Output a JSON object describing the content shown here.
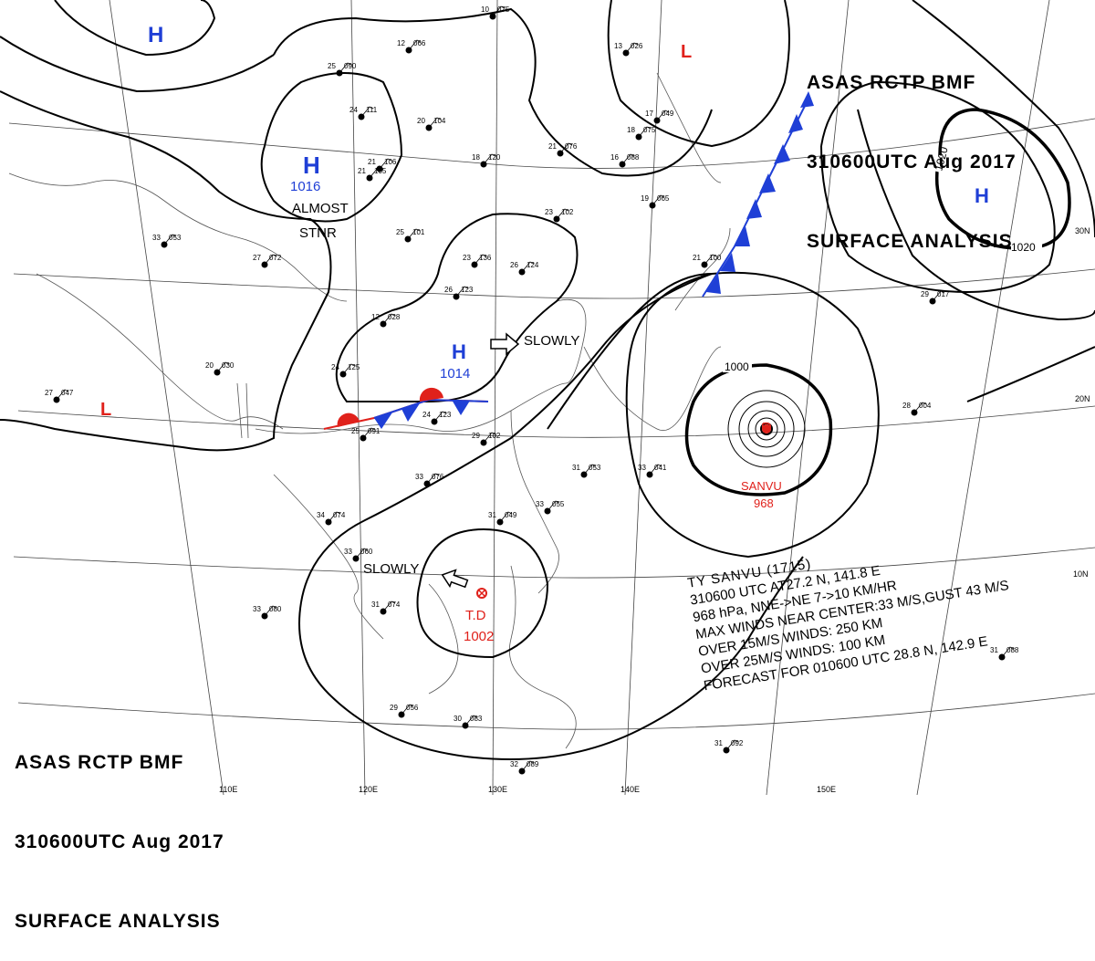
{
  "header_top": {
    "line1": "ASAS RCTP BMF",
    "line2": "310600UTC Aug 2017",
    "line3": "SURFACE ANALYSIS"
  },
  "header_bottom": {
    "line1": "ASAS RCTP BMF",
    "line2": "310600UTC Aug 2017",
    "line3": "SURFACE ANALYSIS"
  },
  "pressure_centers": [
    {
      "type": "H",
      "color": "#1f3fd6",
      "value": "",
      "note": ""
    },
    {
      "type": "H",
      "color": "#1f3fd6",
      "value": "1016",
      "note": "ALMOST STNR"
    },
    {
      "type": "H",
      "color": "#1f3fd6",
      "value": "1014",
      "note": "SLOWLY"
    },
    {
      "type": "H",
      "color": "#1f3fd6",
      "value": "",
      "note": ""
    },
    {
      "type": "L",
      "color": "#e0211b",
      "value": "",
      "note": ""
    },
    {
      "type": "L",
      "color": "#e0211b",
      "value": "",
      "note": ""
    }
  ],
  "almost_stnr": {
    "line1": "ALMOST",
    "line2": "STNR"
  },
  "motion_labels": {
    "slowly_1": "SLOWLY",
    "slowly_2": "SLOWLY"
  },
  "typhoon": {
    "name": "SANVU",
    "pressure": "968",
    "color": "#e0211b"
  },
  "depression": {
    "name": "T.D",
    "pressure": "1002",
    "color": "#e0211b"
  },
  "isobar_labels": {
    "a": "1000",
    "b": "1020",
    "c": "1020"
  },
  "latitude_labels": {
    "lat20": "20N",
    "lat10": "10N",
    "lat30": "30N"
  },
  "longitude_labels": {
    "lon110": "110E",
    "lon120": "120E",
    "lon130": "130E",
    "lon140": "140E",
    "lon150": "150E"
  },
  "advisory": {
    "line1": "TY SANVU (1715)",
    "line2": "310600 UTC AT27.2 N, 141.8 E",
    "line3": "968 hPa, NNE->NE 7->10 KM/HR",
    "line4": "MAX WINDS NEAR CENTER:33 M/S,GUST 43 M/S",
    "line5": "OVER 15M/S WINDS: 250 KM",
    "line6": "OVER 25M/S WINDS: 100 KM",
    "line7": "FORECAST FOR 010600 UTC 28.8 N, 142.9 E"
  },
  "front_colors": {
    "cold": "#1f3fd6",
    "warm": "#e0211b"
  },
  "stations": [
    {
      "t": "25",
      "p": "090"
    },
    {
      "t": "24",
      "p": "111"
    },
    {
      "t": "20",
      "p": "104"
    },
    {
      "t": "18",
      "p": "120"
    },
    {
      "t": "21",
      "p": "105"
    },
    {
      "t": "25",
      "p": "101"
    },
    {
      "t": "23",
      "p": "136"
    },
    {
      "t": "26",
      "p": "124"
    },
    {
      "t": "23",
      "p": "102"
    },
    {
      "t": "27",
      "p": "072"
    },
    {
      "t": "33",
      "p": "053"
    },
    {
      "t": "12",
      "p": "028"
    },
    {
      "t": "26",
      "p": "123"
    },
    {
      "t": "24",
      "p": "125"
    },
    {
      "t": "24",
      "p": "123"
    },
    {
      "t": "25",
      "p": "091"
    },
    {
      "t": "29",
      "p": "102"
    },
    {
      "t": "33",
      "p": "076"
    },
    {
      "t": "34",
      "p": "074"
    },
    {
      "t": "33",
      "p": "060"
    },
    {
      "t": "31",
      "p": "074"
    },
    {
      "t": "33",
      "p": "080"
    },
    {
      "t": "29",
      "p": "056"
    },
    {
      "t": "30",
      "p": "083"
    },
    {
      "t": "32",
      "p": "089"
    },
    {
      "t": "21",
      "p": "100"
    },
    {
      "t": "29",
      "p": "017"
    },
    {
      "t": "28",
      "p": "004"
    },
    {
      "t": "19",
      "p": "065"
    },
    {
      "t": "16",
      "p": "088"
    },
    {
      "t": "18",
      "p": "075"
    },
    {
      "t": "17",
      "p": "049"
    },
    {
      "t": "21",
      "p": "076"
    },
    {
      "t": "10",
      "p": "075"
    },
    {
      "t": "12",
      "p": "066"
    },
    {
      "t": "13",
      "p": "026"
    },
    {
      "t": "31",
      "p": "092"
    },
    {
      "t": "31",
      "p": "088"
    },
    {
      "t": "27",
      "p": "047"
    },
    {
      "t": "20",
      "p": "030"
    },
    {
      "t": "21",
      "p": "106"
    },
    {
      "t": "33",
      "p": "041"
    },
    {
      "t": "31",
      "p": "053"
    },
    {
      "t": "33",
      "p": "055"
    },
    {
      "t": "31",
      "p": "049"
    }
  ]
}
